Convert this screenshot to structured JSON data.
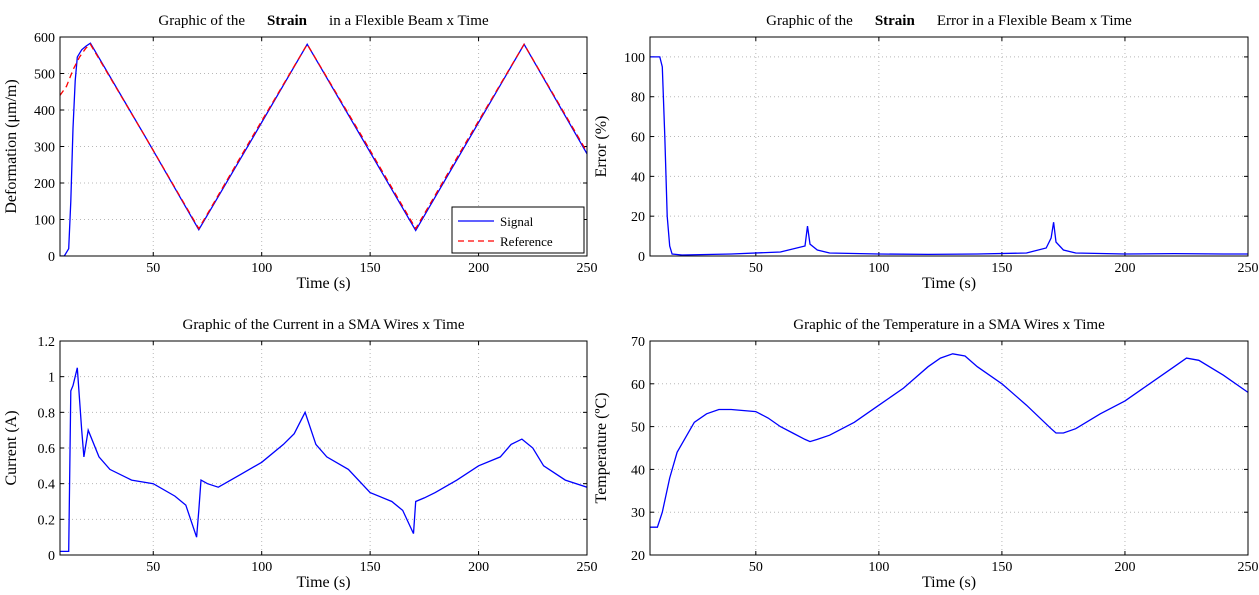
{
  "chart_data": [
    {
      "type": "line",
      "title_parts": [
        "Graphic of the",
        "Strain",
        "in a Flexible Beam x Time"
      ],
      "xlabel": "Time (s)",
      "ylabel": "Deformation (μm/m)",
      "xlim": [
        7,
        250
      ],
      "ylim": [
        0,
        600
      ],
      "xticks": [
        50,
        100,
        150,
        200,
        250
      ],
      "yticks": [
        0,
        100,
        200,
        300,
        400,
        500,
        600
      ],
      "grid": true,
      "legend": "bottom-right",
      "series": [
        {
          "name": "Signal",
          "color": "#0000ff",
          "style": "solid",
          "x": [
            7,
            9,
            11,
            12,
            13,
            14,
            15,
            17,
            19,
            21,
            46,
            71,
            96,
            121,
            146,
            171,
            196,
            221,
            250
          ],
          "y": [
            0,
            0,
            20,
            150,
            350,
            480,
            545,
            565,
            575,
            583,
            330,
            72,
            325,
            580,
            325,
            70,
            325,
            580,
            280
          ]
        },
        {
          "name": "Reference",
          "color": "#ff0000",
          "style": "dashed",
          "x": [
            7,
            10,
            13,
            16,
            19,
            21,
            46,
            71,
            96,
            121,
            146,
            171,
            196,
            221,
            250
          ],
          "y": [
            440,
            465,
            510,
            545,
            570,
            580,
            330,
            75,
            330,
            580,
            330,
            75,
            330,
            580,
            285
          ]
        }
      ]
    },
    {
      "type": "line",
      "title_parts": [
        "Graphic of the",
        "Strain",
        "Error in a Flexible Beam x Time"
      ],
      "xlabel": "Time (s)",
      "ylabel": "Error (%)",
      "xlim": [
        7,
        250
      ],
      "ylim": [
        0,
        110
      ],
      "xticks": [
        50,
        100,
        150,
        200,
        250
      ],
      "yticks": [
        0,
        20,
        40,
        60,
        80,
        100
      ],
      "grid": true,
      "series": [
        {
          "name": "",
          "color": "#0000ff",
          "style": "solid",
          "x": [
            7,
            11,
            12,
            13,
            14,
            15,
            16,
            20,
            40,
            60,
            70,
            71,
            72,
            75,
            80,
            100,
            120,
            140,
            160,
            168,
            170,
            171,
            172,
            175,
            180,
            200,
            220,
            240,
            250
          ],
          "y": [
            100,
            100,
            95,
            60,
            20,
            5,
            1,
            0.5,
            1,
            2,
            5,
            15,
            6,
            3,
            1.5,
            1,
            0.8,
            1,
            1.5,
            4,
            9,
            17,
            7,
            3,
            1.5,
            1,
            1.2,
            1,
            1
          ]
        }
      ]
    },
    {
      "type": "line",
      "title_parts": [
        "Graphic of the Current in a SMA Wires x Time"
      ],
      "xlabel": "Time (s)",
      "ylabel": "Current (A)",
      "xlim": [
        7,
        250
      ],
      "ylim": [
        0,
        1.2
      ],
      "xticks": [
        50,
        100,
        150,
        200,
        250
      ],
      "yticks": [
        0,
        0.2,
        0.4,
        0.6,
        0.8,
        1,
        1.2
      ],
      "grid": true,
      "series": [
        {
          "name": "",
          "color": "#0000ff",
          "style": "solid",
          "x": [
            7,
            11,
            12,
            13,
            15,
            17,
            18,
            20,
            25,
            30,
            40,
            50,
            60,
            65,
            70,
            71,
            72,
            75,
            80,
            90,
            100,
            110,
            115,
            120,
            125,
            130,
            140,
            150,
            160,
            165,
            170,
            171,
            175,
            180,
            190,
            200,
            210,
            215,
            220,
            225,
            230,
            240,
            250
          ],
          "y": [
            0.02,
            0.02,
            0.92,
            0.95,
            1.05,
            0.7,
            0.55,
            0.7,
            0.55,
            0.48,
            0.42,
            0.4,
            0.33,
            0.28,
            0.1,
            0.25,
            0.42,
            0.4,
            0.38,
            0.45,
            0.52,
            0.62,
            0.68,
            0.8,
            0.62,
            0.55,
            0.48,
            0.35,
            0.3,
            0.25,
            0.12,
            0.3,
            0.32,
            0.35,
            0.42,
            0.5,
            0.55,
            0.62,
            0.65,
            0.6,
            0.5,
            0.42,
            0.38
          ]
        }
      ]
    },
    {
      "type": "line",
      "title_parts": [
        "Graphic of the Temperature in a SMA Wires x Time"
      ],
      "xlabel": "Time (s)",
      "ylabel": "Temperature (ºC)",
      "xlim": [
        7,
        250
      ],
      "ylim": [
        20,
        70
      ],
      "xticks": [
        50,
        100,
        150,
        200,
        250
      ],
      "yticks": [
        20,
        30,
        40,
        50,
        60,
        70
      ],
      "grid": true,
      "series": [
        {
          "name": "",
          "color": "#0000ff",
          "style": "solid",
          "x": [
            7,
            10,
            12,
            15,
            18,
            22,
            25,
            30,
            35,
            40,
            50,
            55,
            60,
            65,
            70,
            72,
            75,
            80,
            90,
            100,
            110,
            120,
            125,
            130,
            135,
            140,
            150,
            160,
            170,
            172,
            175,
            180,
            190,
            200,
            210,
            220,
            225,
            230,
            240,
            250
          ],
          "y": [
            26.5,
            26.5,
            30,
            38,
            44,
            48,
            51,
            53,
            54,
            54,
            53.5,
            52,
            50,
            48.5,
            47,
            46.5,
            47,
            48,
            51,
            55,
            59,
            64,
            66,
            67,
            66.5,
            64,
            60,
            55,
            49.5,
            48.5,
            48.5,
            49.5,
            53,
            56,
            60,
            64,
            66,
            65.5,
            62,
            58
          ]
        }
      ]
    }
  ]
}
